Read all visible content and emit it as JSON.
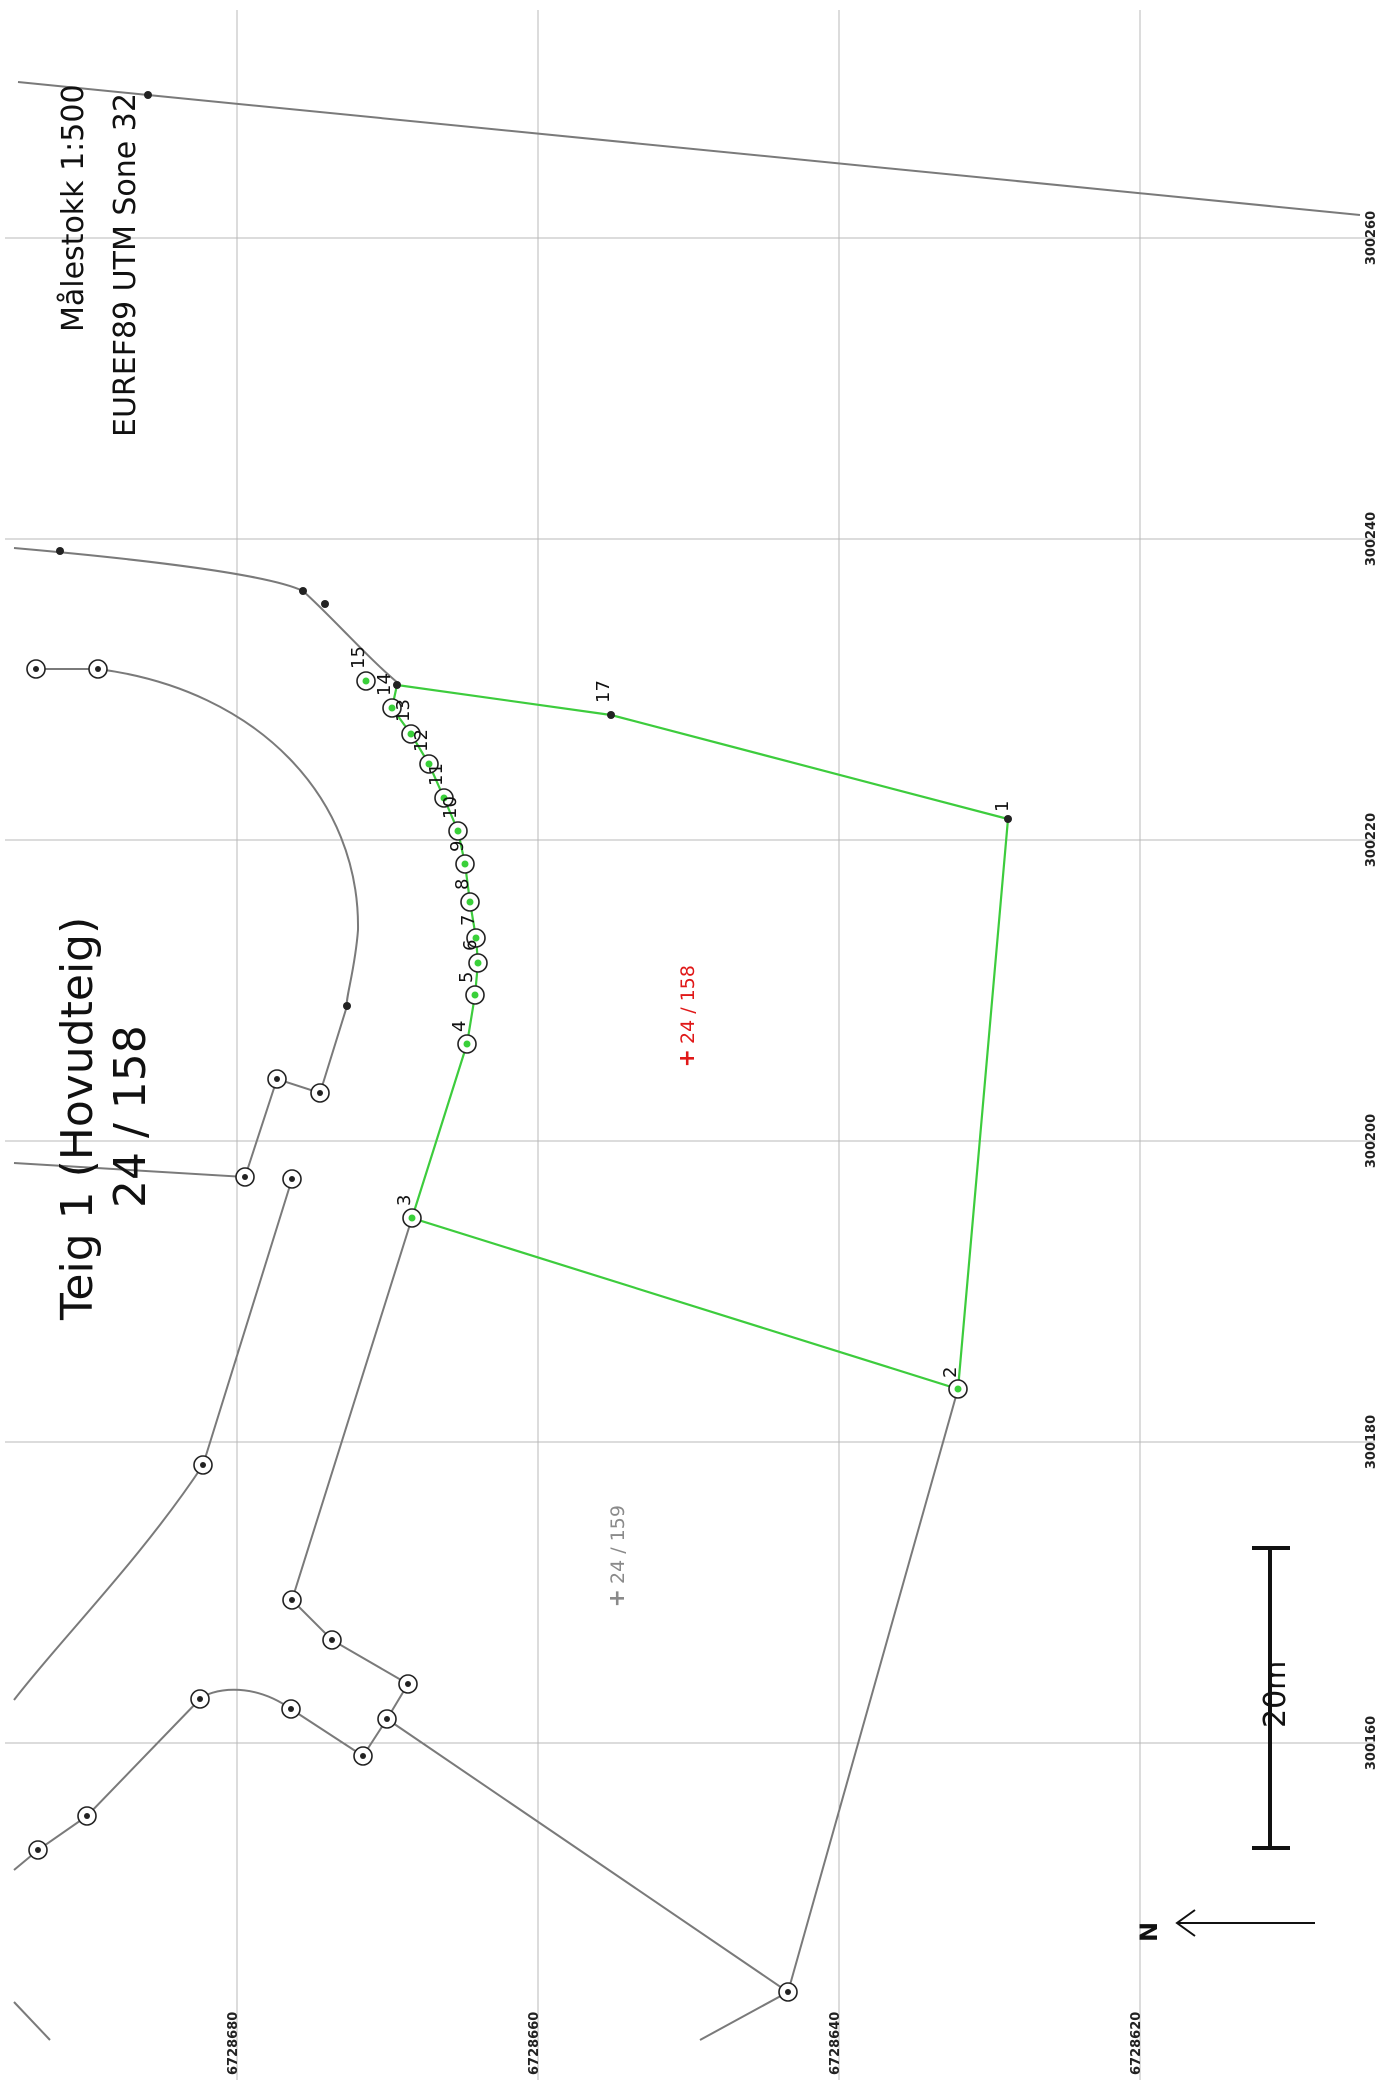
{
  "map": {
    "scale_text": "Målestokk 1:500",
    "crs_text": "EUREF89 UTM Sone 32",
    "title_line1": "Teig 1 (Hovudteig)",
    "title_line2": "24  / 158",
    "scale_bar_label": "20m",
    "north_label": "N",
    "parcel_main_label": "24 / 158",
    "parcel_neighbor_label": "24 / 159",
    "colors": {
      "parcel_boundary": "#3dcc3d",
      "other_boundary": "#7a7a7a",
      "main_label": "#e01818",
      "neighbor_label": "#8a8a8a"
    }
  },
  "grid": {
    "easting_labels": [
      "300260",
      "300240",
      "300220",
      "300200",
      "300180",
      "300160"
    ],
    "northing_labels": [
      "6728680",
      "6728660",
      "6728640",
      "6728620"
    ]
  },
  "boundary_points": [
    "1",
    "2",
    "3",
    "4",
    "5",
    "6",
    "7",
    "8",
    "9",
    "10",
    "11",
    "12",
    "13",
    "14",
    "15",
    "17"
  ]
}
